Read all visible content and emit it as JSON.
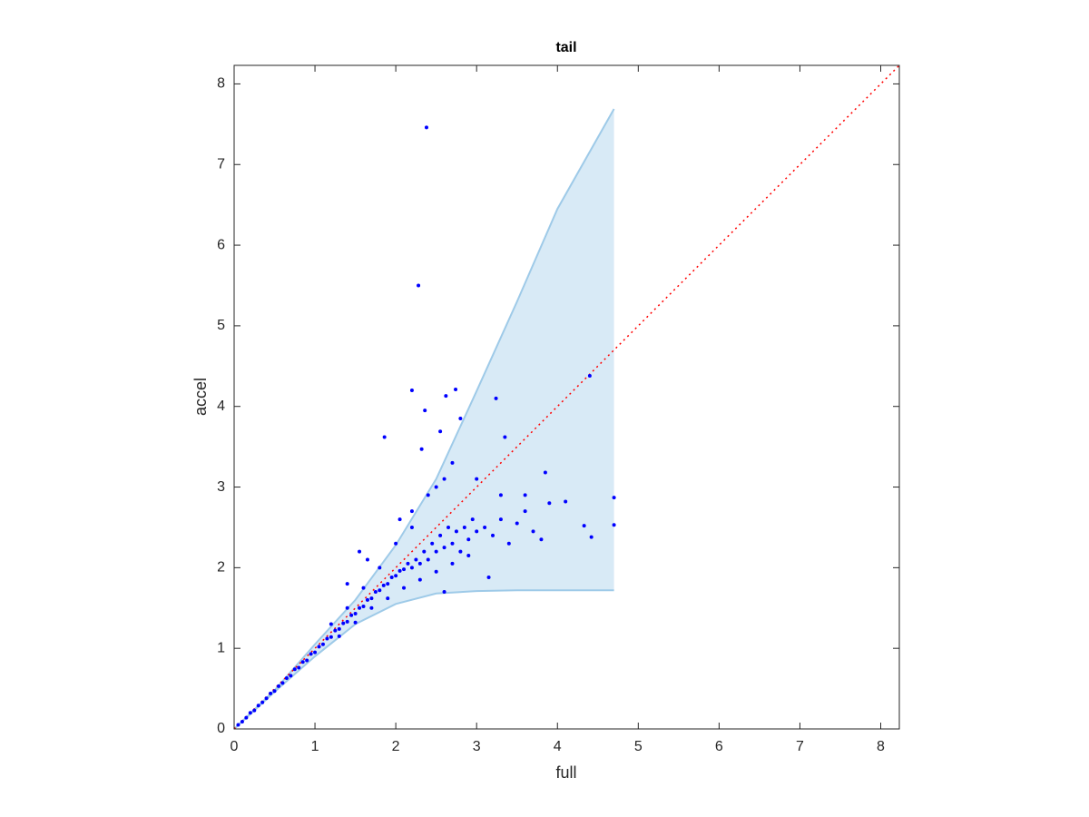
{
  "chart_data": {
    "type": "scatter",
    "title": "tail",
    "xlabel": "full",
    "ylabel": "accel",
    "xlim": [
      0,
      8.23
    ],
    "ylim": [
      0,
      8.23
    ],
    "xticks": [
      0,
      1,
      2,
      3,
      4,
      5,
      6,
      7,
      8
    ],
    "yticks": [
      0,
      1,
      2,
      3,
      4,
      5,
      6,
      7,
      8
    ],
    "band": {
      "color": "#9ecae8",
      "x": [
        0,
        0.5,
        1,
        1.5,
        2,
        2.5,
        3,
        3.5,
        4,
        4.7
      ],
      "upper": [
        0,
        0.48,
        1.05,
        1.6,
        2.28,
        3.1,
        4.19,
        5.3,
        6.45,
        7.69
      ],
      "lower": [
        0,
        0.46,
        0.9,
        1.3,
        1.55,
        1.68,
        1.71,
        1.72,
        1.72,
        1.72
      ]
    },
    "reference": {
      "color": "#ff0000",
      "x": [
        0,
        8.23
      ],
      "values": [
        0,
        8.23
      ]
    },
    "series": [
      {
        "color": "#0000ff",
        "x": [
          2.38,
          2.28,
          2.2,
          2.62,
          2.74,
          2.36,
          3.24,
          4.4,
          1.86,
          2.32,
          2.8,
          2.55,
          3.35,
          4.7,
          4.7,
          4.42,
          4.33,
          3.8,
          4.1,
          3.85,
          3.15,
          2.6,
          0.05,
          0.1,
          0.15,
          0.2,
          0.25,
          0.3,
          0.35,
          0.4,
          0.45,
          0.5,
          0.55,
          0.6,
          0.65,
          0.7,
          0.75,
          0.8,
          0.85,
          0.9,
          0.95,
          1.0,
          1.05,
          1.1,
          1.15,
          1.2,
          1.25,
          1.3,
          1.35,
          1.4,
          1.45,
          1.5,
          1.55,
          1.6,
          1.65,
          1.7,
          1.75,
          1.8,
          1.85,
          1.9,
          1.95,
          2.0,
          2.05,
          2.1,
          2.15,
          2.2,
          2.25,
          2.3,
          2.35,
          2.4,
          2.45,
          2.5,
          2.55,
          2.6,
          2.65,
          2.7,
          2.75,
          2.8,
          2.85,
          2.9,
          2.95,
          3.0,
          3.1,
          3.2,
          3.3,
          3.4,
          3.5,
          3.6,
          3.7,
          1.2,
          1.4,
          1.6,
          1.8,
          2.0,
          2.2,
          2.4,
          2.5,
          2.6,
          2.7,
          1.3,
          1.5,
          1.7,
          1.9,
          2.1,
          2.3,
          2.5,
          2.7,
          2.9,
          3.0,
          3.3,
          3.6,
          3.9,
          1.55,
          1.65,
          1.4,
          2.05,
          2.2
        ],
        "values": [
          7.46,
          5.5,
          4.2,
          4.13,
          4.21,
          3.95,
          4.1,
          4.38,
          3.62,
          3.47,
          3.85,
          3.69,
          3.62,
          2.87,
          2.53,
          2.38,
          2.52,
          2.35,
          2.82,
          3.18,
          1.88,
          1.7,
          0.05,
          0.09,
          0.14,
          0.2,
          0.23,
          0.29,
          0.33,
          0.38,
          0.44,
          0.47,
          0.53,
          0.57,
          0.63,
          0.66,
          0.74,
          0.76,
          0.83,
          0.85,
          0.93,
          0.95,
          1.02,
          1.05,
          1.12,
          1.14,
          1.22,
          1.24,
          1.31,
          1.33,
          1.41,
          1.43,
          1.5,
          1.52,
          1.6,
          1.62,
          1.7,
          1.72,
          1.78,
          1.8,
          1.88,
          1.9,
          1.96,
          1.98,
          2.05,
          2.0,
          2.1,
          2.05,
          2.2,
          2.1,
          2.3,
          2.2,
          2.4,
          2.25,
          2.5,
          2.3,
          2.45,
          2.2,
          2.5,
          2.35,
          2.6,
          2.45,
          2.5,
          2.4,
          2.6,
          2.3,
          2.55,
          2.7,
          2.45,
          1.3,
          1.5,
          1.75,
          2.0,
          2.3,
          2.5,
          2.9,
          3.0,
          3.1,
          3.3,
          1.15,
          1.32,
          1.5,
          1.62,
          1.75,
          1.85,
          1.95,
          2.05,
          2.15,
          3.1,
          2.9,
          2.9,
          2.8,
          2.2,
          2.1,
          1.8,
          2.6,
          2.7
        ]
      }
    ]
  }
}
